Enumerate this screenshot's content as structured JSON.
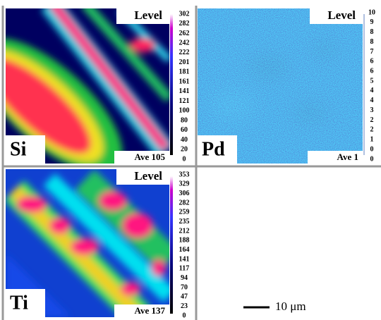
{
  "panels": [
    {
      "element": "Si",
      "level_label": "Level",
      "levels": [
        302,
        282,
        262,
        242,
        222,
        201,
        181,
        161,
        141,
        121,
        100,
        80,
        60,
        40,
        20,
        0
      ],
      "average": "Ave 105"
    },
    {
      "element": "Pd",
      "level_label": "Level",
      "levels": [
        10,
        9,
        8,
        8,
        7,
        6,
        6,
        5,
        4,
        4,
        3,
        2,
        2,
        1,
        0,
        0
      ],
      "average": "Ave 1"
    },
    {
      "element": "Ti",
      "level_label": "Level",
      "levels": [
        353,
        329,
        306,
        282,
        259,
        235,
        212,
        188,
        164,
        141,
        117,
        94,
        70,
        47,
        23,
        0
      ],
      "average": "Ave 137"
    }
  ],
  "scale_bar": "10 μm"
}
